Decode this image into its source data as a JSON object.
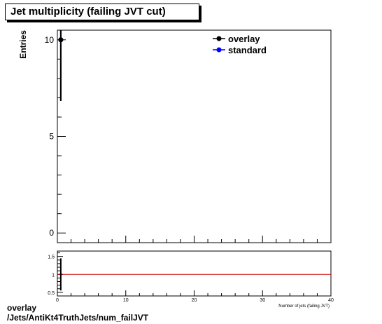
{
  "title": "Jet multiplicity (failing JVT cut)",
  "footer": {
    "line1": "overlay",
    "line2": "/Jets/AntiKt4TruthJets/num_failJVT"
  },
  "chart_data": [
    {
      "type": "scatter",
      "panel": "main",
      "xlabel": "",
      "ylabel": "Entries",
      "xlim": [
        0,
        40
      ],
      "ylim": [
        -0.5,
        10.5
      ],
      "yticks": [
        0,
        5,
        10
      ],
      "legend": "top-right",
      "series": [
        {
          "name": "overlay",
          "color": "#000000",
          "x": [
            0.5
          ],
          "y": [
            10
          ],
          "yerr": [
            3.162
          ]
        },
        {
          "name": "standard",
          "color": "#0000ff",
          "x": [
            0.5
          ],
          "y": [
            10
          ],
          "yerr": [
            3.162
          ]
        }
      ]
    },
    {
      "type": "line",
      "panel": "ratio",
      "xlabel": "Number of jets (failing JVT)",
      "ylabel": "",
      "xlim": [
        0,
        40
      ],
      "ylim": [
        0.4,
        1.65
      ],
      "yticks": [
        0.5,
        1,
        1.5
      ],
      "xticks": [
        0,
        10,
        20,
        30,
        40
      ],
      "reference_line": {
        "y": 1,
        "color": "#cc0000"
      },
      "series": [
        {
          "name": "",
          "color": "#000000",
          "x": [
            0.5
          ],
          "y": [
            1
          ],
          "yerr": [
            0.447
          ]
        }
      ]
    }
  ]
}
